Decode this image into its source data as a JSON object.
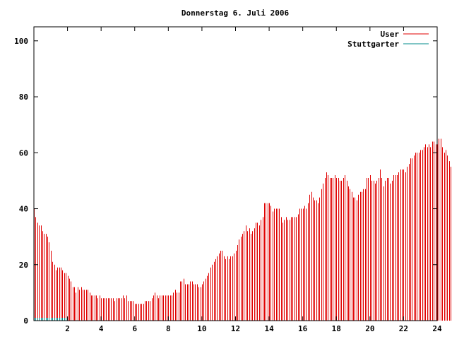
{
  "chart_data": {
    "type": "bar",
    "title": "Donnerstag 6. Juli 2006",
    "xlabel": "",
    "ylabel": "",
    "xlim": [
      0,
      24
    ],
    "ylim": [
      0,
      105
    ],
    "xticks": [
      2,
      4,
      6,
      8,
      10,
      12,
      14,
      16,
      18,
      20,
      22,
      24
    ],
    "yticks": [
      0,
      20,
      40,
      60,
      80,
      100
    ],
    "legend_position": "top-right",
    "series": [
      {
        "name": "User",
        "color": "#e00000",
        "x_start": 0,
        "x_step": 0.1,
        "values": [
          40,
          37,
          35,
          34,
          34,
          32,
          31,
          31,
          30,
          28,
          25,
          21,
          20,
          18,
          19,
          19,
          19,
          18,
          17,
          17,
          16,
          15,
          14,
          12,
          12,
          10,
          12,
          11,
          12,
          11,
          11,
          11,
          11,
          10,
          9,
          9,
          9,
          9,
          8,
          9,
          8,
          8,
          8,
          8,
          8,
          8,
          8,
          8,
          7,
          8,
          8,
          8,
          8,
          9,
          8,
          9,
          7,
          7,
          7,
          7,
          6,
          6,
          6,
          6,
          6,
          6,
          7,
          7,
          7,
          7,
          8,
          9,
          10,
          9,
          8,
          9,
          9,
          9,
          9,
          9,
          9,
          9,
          9,
          10,
          11,
          10,
          10,
          14,
          14,
          15,
          13,
          13,
          13,
          14,
          14,
          13,
          13,
          13,
          12,
          12,
          13,
          14,
          15,
          16,
          17,
          19,
          20,
          21,
          22,
          23,
          24,
          25,
          25,
          23,
          22,
          23,
          22,
          23,
          23,
          24,
          25,
          27,
          29,
          30,
          31,
          32,
          34,
          32,
          33,
          31,
          32,
          33,
          35,
          35,
          34,
          36,
          37,
          42,
          42,
          42,
          42,
          41,
          39,
          40,
          40,
          40,
          40,
          37,
          35,
          36,
          37,
          36,
          36,
          37,
          37,
          37,
          37,
          38,
          40,
          40,
          40,
          41,
          40,
          42,
          45,
          46,
          44,
          43,
          43,
          42,
          44,
          47,
          49,
          51,
          53,
          52,
          51,
          51,
          51,
          52,
          51,
          51,
          50,
          50,
          51,
          52,
          50,
          48,
          47,
          46,
          44,
          44,
          43,
          45,
          46,
          46,
          47,
          47,
          51,
          51,
          52,
          50,
          50,
          49,
          50,
          51,
          54,
          51,
          48,
          50,
          51,
          51,
          49,
          50,
          52,
          52,
          52,
          53,
          54,
          54,
          54,
          53,
          55,
          56,
          58,
          58,
          59,
          60,
          60,
          60,
          61,
          61,
          62,
          63,
          62,
          63,
          62,
          64,
          64,
          63,
          63,
          65,
          65,
          62,
          60,
          61,
          59,
          57,
          55,
          57,
          56,
          55,
          52,
          52,
          52,
          52,
          50,
          47
        ]
      },
      {
        "name": "Stuttgarter",
        "color": "#008b8b",
        "x_start": 0,
        "x_step": 0.1,
        "values": [
          1,
          1,
          1,
          1,
          1,
          1,
          1,
          1,
          1,
          1,
          1,
          1,
          1,
          1,
          1,
          1,
          1,
          1,
          1,
          1,
          0,
          0,
          0,
          0,
          0,
          0,
          0,
          0,
          0,
          0,
          0,
          0,
          0,
          0,
          0,
          0,
          0,
          0,
          0,
          0,
          0,
          0,
          0,
          0,
          0,
          0,
          0,
          0,
          0,
          0,
          0,
          0,
          0,
          0,
          0,
          0,
          0,
          0,
          0,
          0,
          0,
          0,
          0,
          0,
          0,
          0,
          0,
          0,
          0,
          0,
          0,
          0,
          0,
          0,
          0,
          0,
          0,
          0,
          0,
          0,
          0,
          0,
          0,
          0,
          0,
          0,
          0,
          0,
          0,
          0,
          0,
          0,
          0,
          0,
          0,
          0,
          0,
          0,
          0,
          0,
          0,
          0,
          0,
          0,
          0,
          0,
          0,
          0,
          0,
          0,
          0,
          0,
          0,
          0,
          0,
          0,
          0,
          0,
          0,
          0,
          0,
          0,
          0,
          0,
          0,
          0,
          0,
          0,
          0,
          0,
          0,
          0,
          0,
          0,
          0,
          0,
          0,
          0,
          0,
          0,
          0,
          0,
          0,
          0,
          0,
          0,
          0,
          0,
          0,
          0,
          0,
          0,
          0,
          0,
          0,
          0,
          0,
          0,
          0,
          0,
          0,
          0,
          0,
          0,
          0,
          0,
          0,
          0,
          0,
          0,
          0,
          0,
          0,
          0,
          0,
          0,
          0,
          0,
          0,
          0,
          0,
          0,
          0,
          0,
          0,
          0,
          0,
          0,
          0,
          0,
          0,
          0,
          0,
          0,
          0,
          0,
          0,
          0,
          0,
          0,
          0,
          0,
          0,
          0,
          0,
          0,
          0,
          0,
          0,
          0,
          0,
          0,
          0,
          0,
          0,
          0,
          0,
          0,
          0,
          0,
          0,
          0,
          0,
          0,
          0,
          0,
          0,
          0,
          0,
          0,
          0,
          0,
          0,
          0,
          0,
          0,
          0,
          0,
          0,
          0,
          0,
          0,
          0,
          0,
          0,
          0,
          0,
          0,
          0,
          0,
          0,
          0,
          0,
          0,
          0,
          0,
          0,
          0,
          0
        ]
      }
    ]
  }
}
